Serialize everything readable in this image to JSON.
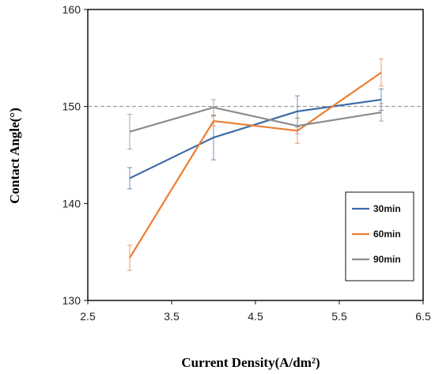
{
  "chart_data": {
    "type": "line",
    "xlabel": "Current Density(A/dm²)",
    "ylabel": "Contact Angle(°)",
    "xlim": [
      2.5,
      6.5
    ],
    "ylim": [
      130,
      160
    ],
    "x_ticks": [
      "2.5",
      "3.5",
      "4.5",
      "5.5",
      "6.5"
    ],
    "y_ticks": [
      "130",
      "140",
      "150",
      "160"
    ],
    "x": [
      3,
      4,
      5,
      6
    ],
    "reference_line": 150,
    "grid": false,
    "legend_position": "lower-right",
    "series": [
      {
        "name": "30min",
        "color": "#3e6ca8",
        "values": [
          142.6,
          146.8,
          149.5,
          150.7
        ],
        "errors": [
          1.1,
          2.3,
          1.6,
          1.1
        ]
      },
      {
        "name": "60min",
        "color": "#ed7d31",
        "values": [
          134.4,
          148.5,
          147.5,
          153.5
        ],
        "errors": [
          1.3,
          0.5,
          1.3,
          1.4
        ]
      },
      {
        "name": "90min",
        "color": "#8c8c8c",
        "values": [
          147.4,
          149.9,
          148.0,
          149.4
        ],
        "errors": [
          1.8,
          0.8,
          0.8,
          0.9
        ]
      }
    ]
  }
}
